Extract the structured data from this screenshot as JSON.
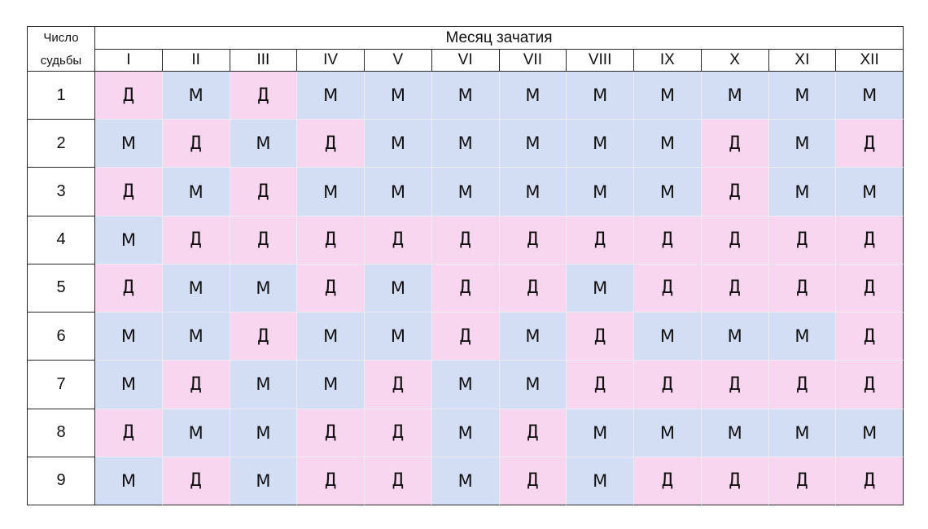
{
  "corner": {
    "line1": "Число",
    "line2": "судьбы"
  },
  "header": {
    "title": "Месяц зачатия"
  },
  "months": [
    "I",
    "II",
    "III",
    "IV",
    "V",
    "VI",
    "VII",
    "VIII",
    "IX",
    "X",
    "XI",
    "XII"
  ],
  "rows": [
    {
      "number": "1",
      "cells": [
        "Д",
        "М",
        "Д",
        "М",
        "М",
        "М",
        "М",
        "М",
        "М",
        "М",
        "М",
        "М"
      ]
    },
    {
      "number": "2",
      "cells": [
        "М",
        "Д",
        "М",
        "Д",
        "М",
        "М",
        "М",
        "М",
        "М",
        "Д",
        "М",
        "Д"
      ]
    },
    {
      "number": "3",
      "cells": [
        "Д",
        "М",
        "Д",
        "М",
        "М",
        "М",
        "М",
        "М",
        "М",
        "Д",
        "М",
        "М"
      ]
    },
    {
      "number": "4",
      "cells": [
        "М",
        "Д",
        "Д",
        "Д",
        "Д",
        "Д",
        "Д",
        "Д",
        "Д",
        "Д",
        "Д",
        "Д"
      ]
    },
    {
      "number": "5",
      "cells": [
        "Д",
        "М",
        "М",
        "Д",
        "М",
        "Д",
        "Д",
        "М",
        "Д",
        "Д",
        "Д",
        "Д"
      ]
    },
    {
      "number": "6",
      "cells": [
        "М",
        "М",
        "Д",
        "М",
        "М",
        "Д",
        "М",
        "Д",
        "М",
        "М",
        "М",
        "Д"
      ]
    },
    {
      "number": "7",
      "cells": [
        "М",
        "Д",
        "М",
        "М",
        "Д",
        "М",
        "М",
        "Д",
        "Д",
        "Д",
        "Д",
        "Д"
      ]
    },
    {
      "number": "8",
      "cells": [
        "Д",
        "М",
        "М",
        "Д",
        "Д",
        "М",
        "Д",
        "М",
        "М",
        "М",
        "М",
        "М"
      ]
    },
    {
      "number": "9",
      "cells": [
        "М",
        "Д",
        "М",
        "Д",
        "Д",
        "М",
        "Д",
        "М",
        "Д",
        "Д",
        "Д",
        "Д"
      ]
    }
  ],
  "colors": {
    "m_background": "#d3def5",
    "d_background": "#f9d6f0",
    "border": "#2a2a2a"
  }
}
